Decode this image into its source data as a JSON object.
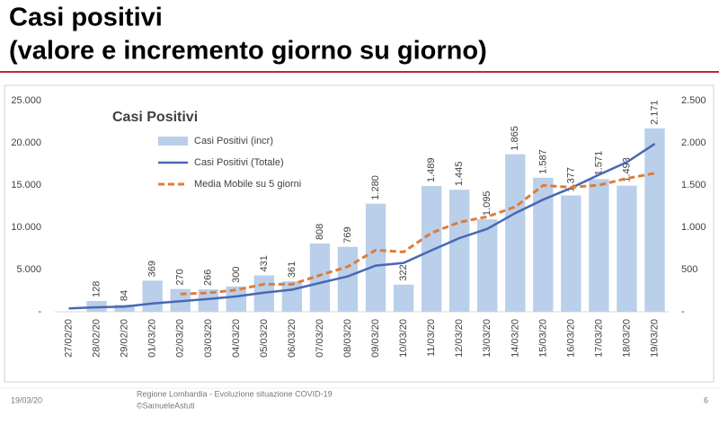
{
  "slide": {
    "title_lines": [
      "Casi positivi",
      "(valore e incremento giorno su giorno)"
    ],
    "footer": {
      "date": "19/03/20",
      "source": "Regione Lombardia - Evoluzione situazione COVID-19",
      "credit": "©SamueleAstuti",
      "page": "6"
    }
  },
  "chart_data": {
    "type": "combo",
    "title": "Casi Positivi",
    "categories": [
      "27/02/20",
      "28/02/20",
      "29/02/20",
      "01/03/20",
      "02/03/20",
      "03/03/20",
      "04/03/20",
      "05/03/20",
      "06/03/20",
      "07/03/20",
      "08/03/20",
      "09/03/20",
      "10/03/20",
      "11/03/20",
      "12/03/20",
      "13/03/20",
      "14/03/20",
      "15/03/20",
      "16/03/20",
      "17/03/20",
      "18/03/20",
      "19/03/20"
    ],
    "series": [
      {
        "name": "Casi Positivi (incr)",
        "type": "bar",
        "axis": "y2",
        "color": "#b9cfea",
        "values": [
          null,
          128,
          84,
          369,
          270,
          266,
          300,
          431,
          361,
          808,
          769,
          1280,
          322,
          1489,
          1445,
          1095,
          1865,
          1587,
          1377,
          1571,
          1493,
          2171
        ],
        "value_labels": [
          null,
          "128",
          "84",
          "369",
          "270",
          "266",
          "300",
          "431",
          "361",
          "808",
          "769",
          "1.280",
          "322",
          "1.489",
          "1.445",
          "1.095",
          "1.865",
          "1.587",
          "1.377",
          "1.571",
          "1.493",
          "2.171"
        ]
      },
      {
        "name": "Casi Positivi (Totale)",
        "type": "line",
        "axis": "y",
        "color": "#4a67b5",
        "values": [
          403,
          531,
          615,
          984,
          1254,
          1520,
          1820,
          2251,
          2612,
          3420,
          4189,
          5469,
          5791,
          7280,
          8725,
          9820,
          11685,
          13272,
          14649,
          16220,
          17713,
          19884
        ]
      },
      {
        "name": "Media Mobile su 5 giorni",
        "type": "dashed-line",
        "axis": "y2",
        "color": "#e07b39",
        "values": [
          null,
          null,
          null,
          null,
          210,
          223,
          258,
          327,
          326,
          433,
          534,
          730,
          708,
          934,
          1061,
          1126,
          1243,
          1496,
          1474,
          1499,
          1579,
          1640
        ]
      }
    ],
    "ylim": [
      0,
      25000
    ],
    "yticks": [
      {
        "value": 0,
        "label": "-"
      },
      {
        "value": 5000,
        "label": "5.000"
      },
      {
        "value": 10000,
        "label": "10.000"
      },
      {
        "value": 15000,
        "label": "15.000"
      },
      {
        "value": 20000,
        "label": "20.000"
      },
      {
        "value": 25000,
        "label": "25.000"
      }
    ],
    "y2lim": [
      0,
      2500
    ],
    "y2ticks": [
      {
        "value": 0,
        "label": "-"
      },
      500,
      {
        "value": 1000,
        "label": "1.000"
      },
      {
        "value": 1500,
        "label": "1.500"
      },
      {
        "value": 2000,
        "label": "2.000"
      },
      {
        "value": 2500,
        "label": "2.500"
      }
    ],
    "grid": false
  }
}
